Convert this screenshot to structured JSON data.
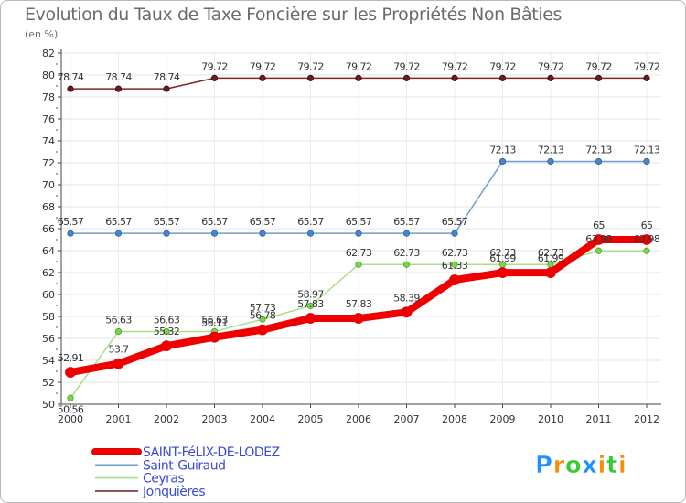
{
  "chart_data": {
    "type": "line",
    "title": "Evolution du Taux de Taxe Foncière sur les Propriétés Non Bâties",
    "subtitle": "(en %)",
    "xlabel": "",
    "ylabel": "(en %)",
    "ylim": [
      50,
      82
    ],
    "yticks": [
      50,
      52,
      54,
      56,
      58,
      60,
      62,
      64,
      66,
      68,
      70,
      72,
      74,
      76,
      78,
      80,
      82
    ],
    "grid": true,
    "legend_position": "bottom-left",
    "x": [
      "2000",
      "2001",
      "2002",
      "2003",
      "2004",
      "2005",
      "2006",
      "2007",
      "2008",
      "2009",
      "2010",
      "2011",
      "2012"
    ],
    "series": [
      {
        "name": "Jonquières",
        "color": "#7b2a2a",
        "values": [
          78.74,
          78.74,
          78.74,
          79.72,
          79.72,
          79.72,
          79.72,
          79.72,
          79.72,
          79.72,
          79.72,
          79.72,
          79.72
        ],
        "labels": [
          "78.74",
          "78.74",
          "78.74",
          "79.72",
          "79.72",
          "79.72",
          "79.72",
          "79.72",
          "79.72",
          "79.72",
          "79.72",
          "79.72",
          "79.72"
        ]
      },
      {
        "name": "Saint-Guiraud",
        "color": "#6f9fcf",
        "values": [
          65.57,
          65.57,
          65.57,
          65.57,
          65.57,
          65.57,
          65.57,
          65.57,
          65.57,
          72.13,
          72.13,
          72.13,
          72.13
        ],
        "labels": [
          "65.57",
          "65.57",
          "65.57",
          "65.57",
          "65.57",
          "65.57",
          "65.57",
          "65.57",
          "65.57",
          "72.13",
          "72.13",
          "72.13",
          "72.13"
        ]
      },
      {
        "name": "Ceyras",
        "color": "#a8df8a",
        "values": [
          50.56,
          56.63,
          56.63,
          56.63,
          57.73,
          58.97,
          62.73,
          62.73,
          62.73,
          62.73,
          62.73,
          63.98,
          63.98
        ],
        "labels": [
          "50.56",
          "56.63",
          "56.63",
          "56.63",
          "57.73",
          "58.97",
          "62.73",
          "62.73",
          "62.73",
          "62.73",
          "62.73",
          "63.98",
          "63.98"
        ]
      },
      {
        "name": "SAINT-FéLIX-DE-LODEZ",
        "color": "#ee0000",
        "values": [
          52.91,
          53.7,
          55.32,
          56.11,
          56.78,
          57.83,
          57.83,
          58.39,
          61.33,
          61.99,
          61.99,
          65,
          65
        ],
        "labels": [
          "52.91",
          "53.7",
          "55.32",
          "56.11",
          "56.78",
          "57.83",
          "57.83",
          "58.39",
          "61.33",
          "61.99",
          "61.99",
          "65",
          "65"
        ]
      }
    ],
    "legend_order": [
      "SAINT-FéLIX-DE-LODEZ",
      "Saint-Guiraud",
      "Ceyras",
      "Jonquières"
    ]
  },
  "logo": {
    "text": "Proxiti",
    "letters": [
      {
        "ch": "P",
        "color": "#1e90ff"
      },
      {
        "ch": "r",
        "color": "#ff8c00"
      },
      {
        "ch": "o",
        "color": "#32cd32"
      },
      {
        "ch": "x",
        "color": "#1e90ff"
      },
      {
        "ch": "i",
        "color": "#ff8c00"
      },
      {
        "ch": "t",
        "color": "#32cd32"
      },
      {
        "ch": "i",
        "color": "#ff8c00"
      }
    ]
  }
}
